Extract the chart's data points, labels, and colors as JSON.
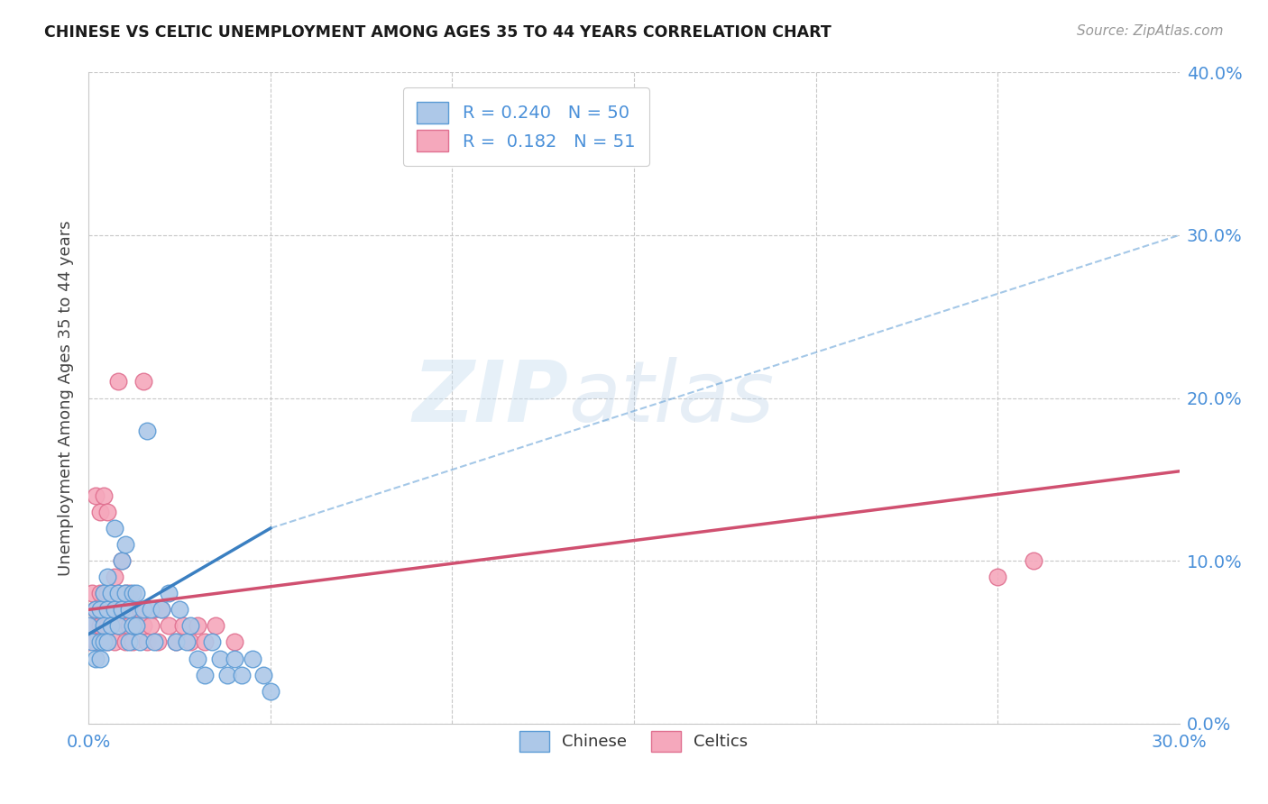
{
  "title": "CHINESE VS CELTIC UNEMPLOYMENT AMONG AGES 35 TO 44 YEARS CORRELATION CHART",
  "source": "Source: ZipAtlas.com",
  "ylabel": "Unemployment Among Ages 35 to 44 years",
  "xlim": [
    0.0,
    0.3
  ],
  "ylim": [
    0.0,
    0.4
  ],
  "xtick_positions": [
    0.0,
    0.3
  ],
  "xtick_labels": [
    "0.0%",
    "30.0%"
  ],
  "yticks": [
    0.0,
    0.1,
    0.2,
    0.3,
    0.4
  ],
  "chinese_R": 0.24,
  "chinese_N": 50,
  "celtics_R": 0.182,
  "celtics_N": 51,
  "chinese_color": "#adc8e8",
  "celtics_color": "#f5a8bc",
  "chinese_edge_color": "#5b9bd5",
  "celtics_edge_color": "#e07090",
  "chinese_line_color": "#3a7fc1",
  "celtics_line_color": "#d05070",
  "background_color": "#ffffff",
  "watermark_zip": "ZIP",
  "watermark_atlas": "atlas",
  "grid_color": "#c8c8c8",
  "chinese_trend_x": [
    0.0,
    0.05
  ],
  "chinese_trend_y": [
    0.055,
    0.12
  ],
  "celtics_trend_x": [
    0.0,
    0.3
  ],
  "celtics_trend_y": [
    0.07,
    0.155
  ],
  "dashed_line_x": [
    0.05,
    0.3
  ],
  "dashed_line_y": [
    0.12,
    0.3
  ],
  "chinese_x": [
    0.0,
    0.001,
    0.002,
    0.002,
    0.003,
    0.003,
    0.003,
    0.004,
    0.004,
    0.004,
    0.005,
    0.005,
    0.005,
    0.006,
    0.006,
    0.007,
    0.007,
    0.008,
    0.008,
    0.009,
    0.009,
    0.01,
    0.01,
    0.011,
    0.011,
    0.012,
    0.012,
    0.013,
    0.013,
    0.014,
    0.015,
    0.016,
    0.017,
    0.018,
    0.02,
    0.022,
    0.024,
    0.025,
    0.027,
    0.028,
    0.03,
    0.032,
    0.034,
    0.036,
    0.038,
    0.04,
    0.042,
    0.045,
    0.048,
    0.05
  ],
  "chinese_y": [
    0.06,
    0.05,
    0.07,
    0.04,
    0.07,
    0.05,
    0.04,
    0.08,
    0.06,
    0.05,
    0.09,
    0.07,
    0.05,
    0.08,
    0.06,
    0.12,
    0.07,
    0.08,
    0.06,
    0.1,
    0.07,
    0.11,
    0.08,
    0.07,
    0.05,
    0.08,
    0.06,
    0.08,
    0.06,
    0.05,
    0.07,
    0.18,
    0.07,
    0.05,
    0.07,
    0.08,
    0.05,
    0.07,
    0.05,
    0.06,
    0.04,
    0.03,
    0.05,
    0.04,
    0.03,
    0.04,
    0.03,
    0.04,
    0.03,
    0.02
  ],
  "celtics_x": [
    0.0,
    0.001,
    0.001,
    0.002,
    0.002,
    0.002,
    0.003,
    0.003,
    0.003,
    0.004,
    0.004,
    0.004,
    0.005,
    0.005,
    0.005,
    0.005,
    0.006,
    0.006,
    0.007,
    0.007,
    0.007,
    0.008,
    0.008,
    0.009,
    0.009,
    0.01,
    0.01,
    0.01,
    0.011,
    0.011,
    0.012,
    0.012,
    0.013,
    0.014,
    0.015,
    0.015,
    0.016,
    0.017,
    0.018,
    0.019,
    0.02,
    0.022,
    0.024,
    0.026,
    0.028,
    0.03,
    0.032,
    0.035,
    0.04,
    0.25,
    0.26
  ],
  "celtics_y": [
    0.05,
    0.08,
    0.06,
    0.14,
    0.07,
    0.05,
    0.13,
    0.08,
    0.06,
    0.14,
    0.08,
    0.06,
    0.13,
    0.08,
    0.06,
    0.05,
    0.08,
    0.06,
    0.09,
    0.07,
    0.05,
    0.21,
    0.07,
    0.1,
    0.07,
    0.08,
    0.06,
    0.05,
    0.08,
    0.06,
    0.07,
    0.05,
    0.06,
    0.07,
    0.21,
    0.06,
    0.05,
    0.06,
    0.07,
    0.05,
    0.07,
    0.06,
    0.05,
    0.06,
    0.05,
    0.06,
    0.05,
    0.06,
    0.05,
    0.09,
    0.1
  ]
}
